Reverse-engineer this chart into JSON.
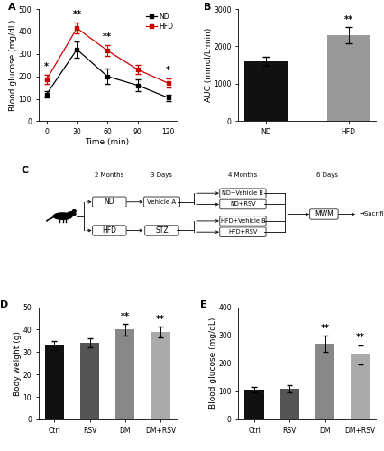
{
  "panel_A": {
    "time": [
      0,
      30,
      60,
      90,
      120
    ],
    "ND_mean": [
      120,
      320,
      200,
      160,
      105
    ],
    "ND_err": [
      15,
      35,
      35,
      25,
      15
    ],
    "HFD_mean": [
      185,
      415,
      315,
      230,
      170
    ],
    "HFD_err": [
      20,
      25,
      25,
      20,
      20
    ],
    "ND_color": "#000000",
    "HFD_color": "#cc0000",
    "ylabel": "Blood glucose (mg/dL)",
    "xlabel": "Time (min)",
    "ylim": [
      0,
      500
    ],
    "yticks": [
      0,
      100,
      200,
      300,
      400,
      500
    ],
    "xticks": [
      0,
      30,
      60,
      90,
      120
    ],
    "sig_positions": [
      [
        0,
        "*"
      ],
      [
        30,
        "**"
      ],
      [
        60,
        "**"
      ],
      [
        120,
        "*"
      ]
    ]
  },
  "panel_B": {
    "categories": [
      "ND",
      "HFD"
    ],
    "values": [
      1600,
      2300
    ],
    "errors": [
      120,
      220
    ],
    "colors": [
      "#111111",
      "#999999"
    ],
    "ylabel": "AUC (mmol/L·min)",
    "ylim": [
      0,
      3000
    ],
    "yticks": [
      0,
      1000,
      2000,
      3000
    ],
    "sig_HFD": "**"
  },
  "panel_D": {
    "categories": [
      "Ctrl",
      "RSV",
      "DM",
      "DM+RSV"
    ],
    "values": [
      33,
      34,
      40,
      39
    ],
    "errors": [
      2.0,
      2.0,
      2.5,
      2.5
    ],
    "colors": [
      "#111111",
      "#555555",
      "#888888",
      "#aaaaaa"
    ],
    "ylabel": "Body weight (g)",
    "ylim": [
      0,
      50
    ],
    "yticks": [
      0,
      10,
      20,
      30,
      40,
      50
    ],
    "sig_DM": "**",
    "sig_DMRSV": "**"
  },
  "panel_E": {
    "categories": [
      "Ctrl",
      "RSV",
      "DM",
      "DM+RSV"
    ],
    "values": [
      105,
      110,
      270,
      230
    ],
    "errors": [
      10,
      12,
      30,
      35
    ],
    "colors": [
      "#111111",
      "#555555",
      "#888888",
      "#aaaaaa"
    ],
    "ylabel": "Blood glucose (mg/dL)",
    "ylim": [
      0,
      400
    ],
    "yticks": [
      0,
      100,
      200,
      300,
      400
    ],
    "sig_DM": "**",
    "sig_DMRSV": "**"
  },
  "label_fontsize": 6.5,
  "tick_fontsize": 5.5,
  "panel_label_fontsize": 8,
  "sig_fontsize": 7
}
